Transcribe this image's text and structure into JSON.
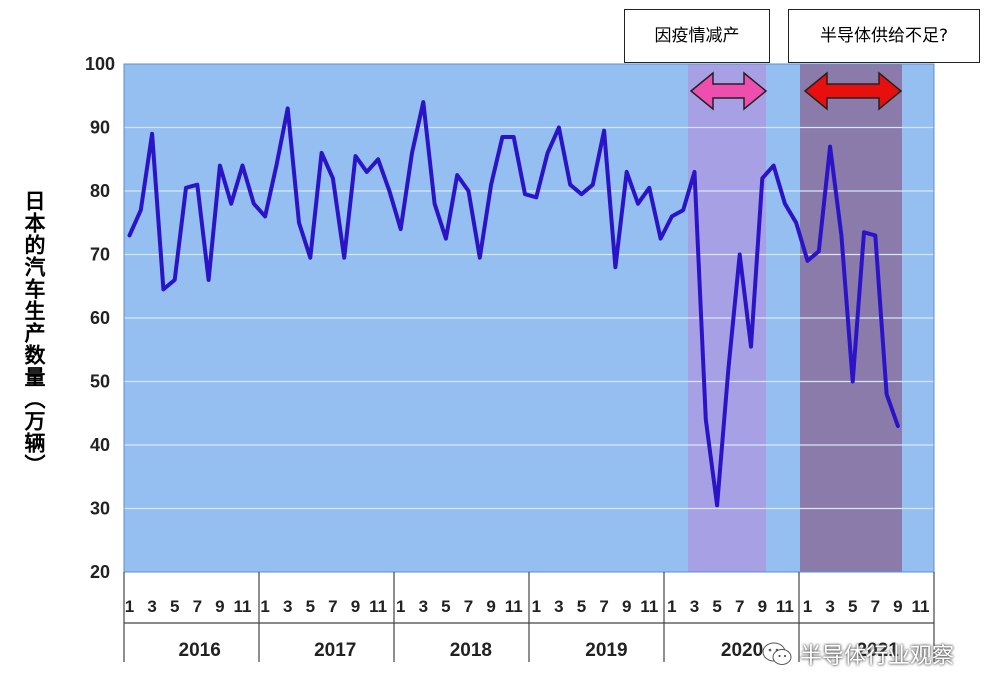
{
  "chart_data": {
    "type": "line",
    "title": "",
    "ylabel": "日本的汽车生产数量（万辆）",
    "xlabel": "",
    "ylim": [
      20,
      100
    ],
    "yticks": [
      "20",
      "30",
      "40",
      "50",
      "60",
      "70",
      "80",
      "90",
      "100"
    ],
    "grid": true,
    "years": [
      "2016",
      "2017",
      "2018",
      "2019",
      "2020",
      "2021"
    ],
    "month_ticks": [
      "1",
      "3",
      "5",
      "7",
      "9",
      "11"
    ],
    "series": [
      {
        "color": "#2b14c8",
        "values": [
          73,
          77,
          89,
          64.5,
          66,
          80.5,
          81,
          66,
          84,
          78,
          84,
          78,
          76,
          84,
          93,
          75,
          69.5,
          86,
          82,
          69.5,
          85.5,
          83,
          85,
          80,
          74,
          86,
          94,
          78,
          72.5,
          82.5,
          80,
          69.5,
          81,
          88.5,
          88.5,
          79.5,
          79,
          86,
          90,
          81,
          79.5,
          81,
          89.5,
          68,
          83,
          78,
          80.5,
          72.5,
          76,
          77,
          83,
          44,
          30.5,
          52,
          70,
          55.5,
          82,
          84,
          78,
          75,
          69,
          70.5,
          87,
          73,
          50,
          73.5,
          73,
          48,
          43
        ]
      }
    ],
    "shaded_regions": [
      {
        "start_month_index": 50,
        "end_month_index": 56,
        "color": "#ab9ae2"
      },
      {
        "start_month_index": 61,
        "end_month_index": 69,
        "color": "#8a6f9e"
      }
    ],
    "arrows": [
      {
        "color": "#ee4fae"
      },
      {
        "color": "#e80f0f"
      }
    ],
    "colors": {
      "plot_background": "#94bff0",
      "outer_background": "#ffffff",
      "gridline": "#d6e6f8"
    }
  },
  "annotations": {
    "covid": "因疫情减产",
    "chip": "半导体供给不足?"
  },
  "watermark": {
    "text": "半导体行业观察",
    "icon": "wechat-icon"
  }
}
